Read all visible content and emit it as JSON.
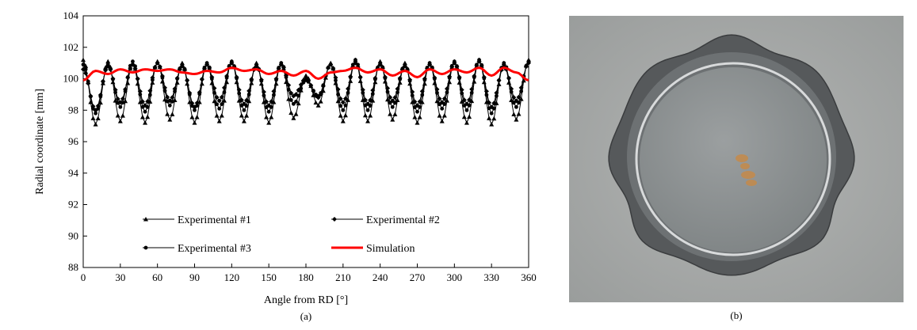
{
  "figure": {
    "caption_a": "(a)",
    "caption_b": "(b)"
  },
  "chart_data": {
    "type": "line",
    "xlabel": "Angle from RD [°]",
    "ylabel": "Radial coordinate [mm]",
    "xlim": [
      0,
      360
    ],
    "ylim": [
      88,
      104
    ],
    "xticks": [
      "0",
      "30",
      "60",
      "90",
      "120",
      "150",
      "180",
      "210",
      "240",
      "270",
      "300",
      "330",
      "360"
    ],
    "yticks": [
      "88",
      "90",
      "92",
      "94",
      "96",
      "98",
      "100",
      "102",
      "104"
    ],
    "grid": false,
    "legend_position": "bottom",
    "x": [
      0,
      10,
      20,
      30,
      40,
      50,
      60,
      70,
      80,
      90,
      100,
      110,
      120,
      130,
      140,
      150,
      160,
      170,
      180,
      190,
      200,
      210,
      220,
      230,
      240,
      250,
      260,
      270,
      280,
      290,
      300,
      310,
      320,
      330,
      340,
      350,
      360
    ],
    "series": [
      {
        "name": "Experimental #1",
        "marker": "triangle",
        "color": "#000000",
        "values": [
          101.2,
          97.1,
          101.1,
          97.3,
          101.0,
          97.2,
          101.1,
          97.4,
          101.0,
          97.2,
          101.0,
          97.3,
          101.1,
          97.3,
          101.0,
          97.2,
          101.0,
          97.5,
          100.2,
          98.3,
          101.0,
          97.3,
          101.2,
          97.3,
          101.1,
          97.4,
          101.0,
          97.2,
          101.0,
          97.3,
          101.1,
          97.2,
          101.2,
          97.1,
          101.0,
          97.4,
          101.2
        ]
      },
      {
        "name": "Experimental #2",
        "marker": "diamond",
        "color": "#000000",
        "values": [
          100.6,
          98.0,
          100.8,
          98.5,
          100.9,
          98.3,
          101.0,
          98.6,
          100.8,
          98.2,
          100.9,
          98.6,
          101.0,
          98.4,
          100.8,
          98.3,
          100.9,
          98.9,
          100.0,
          98.8,
          100.9,
          98.5,
          101.0,
          98.4,
          100.9,
          98.6,
          100.8,
          98.3,
          100.9,
          98.5,
          101.0,
          98.4,
          101.1,
          98.2,
          100.8,
          98.6,
          101.0
        ]
      },
      {
        "name": "Experimental #3",
        "marker": "circle",
        "color": "#000000",
        "values": [
          100.9,
          97.8,
          100.9,
          98.2,
          101.1,
          97.9,
          101.0,
          98.3,
          100.9,
          98.0,
          101.0,
          98.1,
          101.1,
          98.0,
          100.9,
          97.9,
          101.0,
          98.4,
          99.9,
          98.9,
          100.9,
          98.0,
          101.2,
          98.0,
          101.0,
          98.2,
          100.9,
          97.9,
          101.0,
          98.1,
          101.1,
          98.0,
          101.2,
          97.8,
          101.0,
          98.2,
          101.1
        ]
      },
      {
        "name": "Simulation",
        "marker": "none",
        "color": "#ff0000",
        "values": [
          99.9,
          100.5,
          100.3,
          100.6,
          100.4,
          100.6,
          100.5,
          100.6,
          100.4,
          100.3,
          100.5,
          100.4,
          100.7,
          100.5,
          100.6,
          100.3,
          100.5,
          100.2,
          100.5,
          100.0,
          100.4,
          100.5,
          100.7,
          100.4,
          100.6,
          100.2,
          100.5,
          100.1,
          100.6,
          100.3,
          100.6,
          100.4,
          100.7,
          100.2,
          100.7,
          100.4,
          99.9
        ]
      }
    ]
  },
  "photo": {
    "icon": "photo-icon",
    "background": "#a6a9a8",
    "rim_color": "#4e5052",
    "base_color": "#8b8f8f",
    "stain_color": "#c58a4a"
  }
}
